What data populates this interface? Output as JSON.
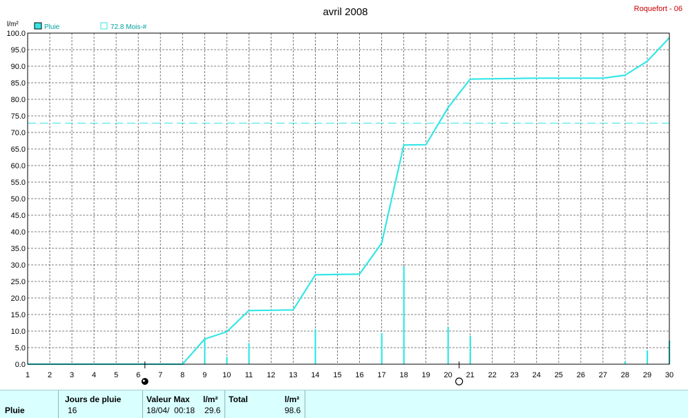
{
  "header": {
    "title": "avril 2008",
    "station": "Roquefort - 06",
    "unit": "l/m²",
    "legend_rain": "Pluie",
    "legend_avg": "72.8 Mois-#"
  },
  "colors": {
    "series": "#33e6e6",
    "station": "#cc0000",
    "grid": "#555555",
    "footer_bg": "#d9ffff"
  },
  "chart_data": {
    "type": "line",
    "title": "avril 2008",
    "ylabel": "l/m²",
    "xlabel": "",
    "xlim": [
      1,
      30
    ],
    "ylim": [
      0,
      100
    ],
    "grid": true,
    "legend": "top-left",
    "x_ticks": [
      1,
      2,
      3,
      4,
      5,
      6,
      7,
      8,
      9,
      10,
      11,
      12,
      13,
      14,
      15,
      16,
      17,
      18,
      19,
      20,
      21,
      22,
      23,
      24,
      25,
      26,
      27,
      28,
      29,
      30
    ],
    "y_ticks": [
      "0.0",
      "5.0",
      "10.0",
      "15.0",
      "20.0",
      "25.0",
      "30.0",
      "35.0",
      "40.0",
      "45.0",
      "50.0",
      "55.0",
      "60.0",
      "65.0",
      "70.0",
      "75.0",
      "80.0",
      "85.0",
      "90.0",
      "95.0",
      "100.0"
    ],
    "average_line": {
      "name": "72.8 Mois-#",
      "value": 72.8
    },
    "series": [
      {
        "name": "Pluie",
        "kind": "cumulative-line",
        "points": [
          [
            1,
            0
          ],
          [
            8,
            0
          ],
          [
            9,
            7.6
          ],
          [
            10,
            9.8
          ],
          [
            11,
            16.2
          ],
          [
            12,
            16.3
          ],
          [
            13,
            16.4
          ],
          [
            14,
            27.0
          ],
          [
            15,
            27.1
          ],
          [
            16,
            27.2
          ],
          [
            17,
            36.6
          ],
          [
            18,
            66.2
          ],
          [
            19,
            66.3
          ],
          [
            20,
            77.5
          ],
          [
            21,
            86.1
          ],
          [
            22,
            86.2
          ],
          [
            23,
            86.3
          ],
          [
            24,
            86.4
          ],
          [
            25,
            86.4
          ],
          [
            26,
            86.4
          ],
          [
            27,
            86.4
          ],
          [
            28,
            87.3
          ],
          [
            29,
            91.5
          ],
          [
            30,
            98.6
          ]
        ]
      },
      {
        "name": "Pluie",
        "kind": "daily-bars",
        "points": [
          [
            9,
            7.6
          ],
          [
            10,
            2.2
          ],
          [
            11,
            6.4
          ],
          [
            14,
            10.6
          ],
          [
            17,
            9.4
          ],
          [
            18,
            29.6
          ],
          [
            20,
            11.2
          ],
          [
            21,
            8.6
          ],
          [
            28,
            0.9
          ],
          [
            29,
            4.2
          ],
          [
            30,
            7.1
          ]
        ]
      }
    ],
    "moon_phases": [
      {
        "day": 6.3,
        "phase": "new-moon-icon"
      },
      {
        "day": 20.5,
        "phase": "full-moon-icon"
      }
    ]
  },
  "footer": {
    "row_label": "Pluie",
    "jours_label": "Jours de pluie",
    "jours_value": "16",
    "max_label": "Valeur Max",
    "max_unit": "l/m²",
    "max_date": "18/04/  00:18",
    "max_value": "29.6",
    "total_label": "Total",
    "total_unit": "l/m²",
    "total_value": "98.6"
  }
}
